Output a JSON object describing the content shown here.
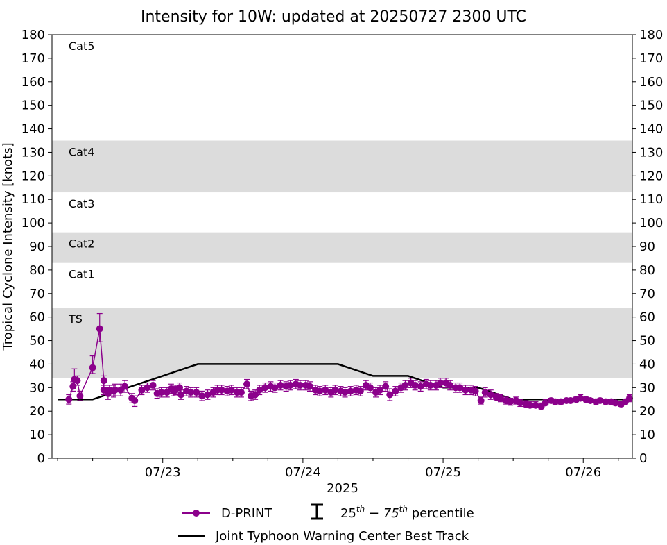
{
  "chart_data": {
    "type": "line",
    "title": "Intensity for 10W: updated at 20250727 2300 UTC",
    "xlabel": "2025",
    "ylabel": "Tropical Cyclone Intensity [knots]",
    "x_unit": "days since 2025-07-22 00:00 UTC",
    "xlim": [
      0.21,
      4.35
    ],
    "ylim": [
      0,
      180
    ],
    "y_ticks": [
      0,
      10,
      20,
      30,
      40,
      50,
      60,
      70,
      80,
      90,
      100,
      110,
      120,
      130,
      140,
      150,
      160,
      170,
      180
    ],
    "x_ticks": [
      {
        "x": 1,
        "label": "07/23"
      },
      {
        "x": 2,
        "label": "07/24"
      },
      {
        "x": 3,
        "label": "07/25"
      },
      {
        "x": 4,
        "label": "07/26"
      }
    ],
    "x_minor_ticks": [
      0.25,
      0.5,
      0.75,
      1.25,
      1.5,
      1.75,
      2.25,
      2.5,
      2.75,
      3.25,
      3.5,
      3.75,
      4.25
    ],
    "category_bands": [
      {
        "label": "TS",
        "low": 34,
        "high": 64,
        "shaded": true
      },
      {
        "label": "Cat1",
        "low": 64,
        "high": 83,
        "shaded": false
      },
      {
        "label": "Cat2",
        "low": 83,
        "high": 96,
        "shaded": true
      },
      {
        "label": "Cat3",
        "low": 96,
        "high": 113,
        "shaded": false
      },
      {
        "label": "Cat4",
        "low": 113,
        "high": 135,
        "shaded": true
      },
      {
        "label": "Cat5",
        "low": 135,
        "high": 180,
        "shaded": false
      }
    ],
    "band_color": "#dcdcdc",
    "series": [
      {
        "name": "Joint Typhoon Warning Center Best Track",
        "type": "line",
        "color": "#000000",
        "x": [
          0.25,
          0.5,
          0.75,
          1.0,
          1.25,
          1.5,
          1.75,
          2.0,
          2.25,
          2.5,
          2.75,
          3.0,
          3.25,
          3.5,
          3.75,
          4.0,
          4.25,
          4.35
        ],
        "y": [
          25,
          25,
          30,
          35,
          40,
          40,
          40,
          40,
          40,
          35,
          35,
          30,
          30,
          25,
          25,
          25,
          25,
          25
        ]
      },
      {
        "name": "D-PRINT",
        "type": "scatter_errorbar",
        "color": "#8b008b",
        "errorbar_description": "25th-75th percentile",
        "x": [
          0.33,
          0.36,
          0.37,
          0.39,
          0.41,
          0.5,
          0.55,
          0.58,
          0.58,
          0.61,
          0.62,
          0.65,
          0.66,
          0.7,
          0.73,
          0.78,
          0.8,
          0.85,
          0.89,
          0.93,
          0.96,
          0.99,
          1.03,
          1.06,
          1.08,
          1.09,
          1.12,
          1.13,
          1.17,
          1.2,
          1.24,
          1.28,
          1.32,
          1.36,
          1.39,
          1.42,
          1.46,
          1.49,
          1.53,
          1.56,
          1.6,
          1.63,
          1.66,
          1.69,
          1.73,
          1.77,
          1.8,
          1.84,
          1.88,
          1.91,
          1.95,
          1.98,
          2.02,
          2.05,
          2.09,
          2.12,
          2.16,
          2.2,
          2.23,
          2.27,
          2.3,
          2.34,
          2.38,
          2.41,
          2.45,
          2.48,
          2.52,
          2.55,
          2.59,
          2.62,
          2.66,
          2.7,
          2.73,
          2.77,
          2.8,
          2.84,
          2.88,
          2.91,
          2.95,
          2.98,
          3.02,
          3.05,
          3.09,
          3.12,
          3.16,
          3.2,
          3.23,
          3.27,
          3.3,
          3.34,
          3.38,
          3.41,
          3.45,
          3.48,
          3.52,
          3.55,
          3.59,
          3.62,
          3.66,
          3.7,
          3.73,
          3.77,
          3.8,
          3.84,
          3.88,
          3.91,
          3.95,
          3.98,
          4.02,
          4.05,
          4.09,
          4.12,
          4.16,
          4.2,
          4.23,
          4.27,
          4.3,
          4.33
        ],
        "y": [
          25,
          30.5,
          33.5,
          33,
          26.5,
          38.5,
          55,
          33,
          29,
          27.5,
          29,
          28.5,
          29,
          29,
          30.5,
          25.5,
          24.5,
          29,
          30,
          31,
          27.5,
          28,
          28,
          29.5,
          28.5,
          29,
          30,
          27,
          28.5,
          28,
          28,
          26.5,
          27,
          28,
          29,
          29,
          28.5,
          29,
          28,
          28,
          31.5,
          26.5,
          27,
          29,
          30,
          30.5,
          30,
          31,
          30.5,
          31,
          31.5,
          31,
          31,
          30.5,
          29,
          28.5,
          29,
          28,
          29,
          28.5,
          28,
          28.5,
          29,
          28.5,
          31,
          30,
          28,
          29,
          30.5,
          27,
          28.5,
          30,
          31,
          32,
          31,
          30.5,
          31.5,
          31,
          31,
          32,
          32,
          31,
          30,
          30,
          29,
          29,
          28.5,
          24.5,
          28,
          27,
          26,
          25.5,
          24.5,
          24,
          24.5,
          23.5,
          23,
          22.5,
          22.5,
          22,
          23.5,
          24.5,
          24,
          24,
          24.5,
          24.5,
          25,
          25.5,
          25,
          24.5,
          24,
          24.5,
          24,
          24,
          23.5,
          23,
          24,
          25.5
        ],
        "err_low": [
          23,
          28.5,
          31,
          31,
          24.5,
          36,
          49.5,
          31,
          27,
          25,
          26.5,
          26,
          26.5,
          26.5,
          28,
          23.5,
          22,
          27,
          28,
          29,
          25.5,
          26,
          26,
          27.5,
          26.5,
          27,
          28,
          25,
          26.5,
          26,
          26,
          24.5,
          25,
          26,
          27,
          27,
          26.5,
          27,
          26,
          26,
          29.5,
          24.5,
          25,
          27,
          28,
          28.5,
          28,
          29,
          28.5,
          29,
          29.5,
          29,
          29,
          28.5,
          27,
          26.5,
          27,
          26,
          27,
          26.5,
          26,
          26.5,
          27,
          26.5,
          29,
          28,
          26,
          27,
          28.5,
          24.5,
          26.5,
          28,
          29,
          30,
          29,
          28.5,
          29.5,
          29,
          29,
          30,
          30,
          29,
          28,
          28,
          27,
          27,
          26.5,
          23,
          26,
          25,
          24.5,
          24,
          23,
          22.5,
          23,
          22,
          21.5,
          21.5,
          21.5,
          21,
          22.5,
          23.5,
          23,
          23,
          23.5,
          23.5,
          24,
          24.5,
          24,
          23.5,
          23,
          23.5,
          23,
          23,
          22.5,
          22,
          23,
          24
        ],
        "err_high": [
          27,
          32.5,
          38,
          35,
          28.5,
          43.5,
          61.5,
          35,
          31,
          30,
          31,
          31,
          31.5,
          31.5,
          33,
          27.5,
          26.5,
          31,
          32,
          33,
          29.5,
          30,
          30,
          31.5,
          30.5,
          31,
          32,
          29,
          30.5,
          30,
          30,
          28.5,
          29,
          30,
          31,
          31,
          30.5,
          31,
          30,
          30,
          33.5,
          28.5,
          29,
          31,
          32,
          32.5,
          32,
          33,
          32.5,
          33,
          33.5,
          33,
          33,
          32.5,
          31,
          30.5,
          31,
          30,
          31,
          30.5,
          30,
          30.5,
          31,
          30.5,
          33,
          32,
          30,
          31,
          32.5,
          29.5,
          30.5,
          32,
          33,
          34,
          33,
          32.5,
          33.5,
          33,
          33,
          34,
          34,
          33,
          32,
          32,
          31,
          31,
          30.5,
          26,
          30,
          29,
          27.5,
          27,
          26,
          25.5,
          26,
          25,
          24.5,
          24,
          24,
          23.5,
          25,
          25.5,
          25,
          25,
          25.5,
          25.5,
          26,
          27,
          26,
          25.5,
          25,
          25.5,
          25,
          25,
          24.5,
          24,
          25,
          27
        ]
      }
    ],
    "legend": {
      "position": "bottom-center",
      "entries": [
        {
          "label": "D-PRINT",
          "kind": "marker-line",
          "color": "#8b008b"
        },
        {
          "label": "25th - 75th percentile",
          "base": "25",
          "sup1": "th",
          "mid": " − 75",
          "sup2": "th",
          "tail": " percentile",
          "kind": "errorbar",
          "color": "#000000"
        },
        {
          "label": "Joint Typhoon Warning Center Best Track",
          "kind": "line",
          "color": "#000000"
        }
      ]
    }
  }
}
